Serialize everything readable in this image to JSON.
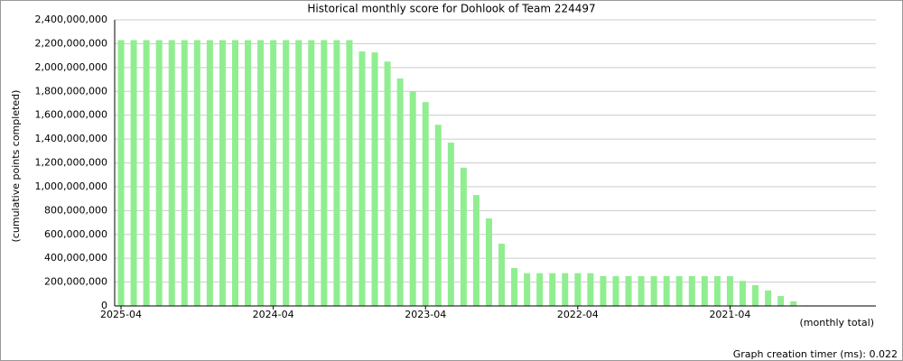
{
  "chart_data": {
    "type": "bar",
    "title": "Historical monthly score for Dohlook of Team 224497",
    "y_label": "(cumulative points completed)",
    "x_note": "(monthly total)",
    "footer": "Graph creation timer (ms): 0.022",
    "color": "#90ee90",
    "grid": true,
    "categories": [
      "2025-04",
      null,
      null,
      null,
      null,
      null,
      null,
      null,
      null,
      null,
      null,
      null,
      "2024-04",
      null,
      null,
      null,
      null,
      null,
      null,
      null,
      null,
      null,
      null,
      null,
      "2023-04",
      null,
      null,
      null,
      null,
      null,
      null,
      null,
      null,
      null,
      null,
      null,
      "2022-04",
      null,
      null,
      null,
      null,
      null,
      null,
      null,
      null,
      null,
      null,
      null,
      "2021-04",
      null,
      null,
      null,
      null,
      null,
      null,
      null,
      null,
      null,
      null,
      null
    ],
    "values": [
      2230000000,
      2230000000,
      2230000000,
      2230000000,
      2230000000,
      2230000000,
      2230000000,
      2230000000,
      2230000000,
      2230000000,
      2230000000,
      2230000000,
      2230000000,
      2230000000,
      2230000000,
      2230000000,
      2230000000,
      2230000000,
      2230000000,
      2135000000,
      2127000000,
      2050000000,
      1908000000,
      1800000000,
      1710000000,
      1520000000,
      1370000000,
      1160000000,
      930000000,
      734000000,
      522000000,
      318000000,
      275000000,
      275000000,
      275000000,
      275000000,
      275000000,
      275000000,
      250000000,
      250000000,
      250000000,
      250000000,
      250000000,
      250000000,
      250000000,
      250000000,
      250000000,
      250000000,
      250000000,
      210000000,
      174000000,
      130000000,
      83000000,
      38000000,
      5000000,
      4000000,
      4000000,
      4000000,
      4000000,
      4000000
    ],
    "ylim": [
      0,
      2400000000
    ],
    "yticks": [
      0,
      {
        "value": 200000000,
        "label": "200,000,000"
      },
      {
        "value": 400000000,
        "label": "400,000,000"
      },
      {
        "value": 600000000,
        "label": "600,000,000"
      },
      {
        "value": 800000000,
        "label": "800,000,000"
      },
      {
        "value": 1000000000,
        "label": "1,000,000,000"
      },
      {
        "value": 1200000000,
        "label": "1,200,000,000"
      },
      {
        "value": 1400000000,
        "label": "1,400,000,000"
      },
      {
        "value": 1600000000,
        "label": "1,600,000,000"
      },
      {
        "value": 1800000000,
        "label": "1,800,000,000"
      },
      {
        "value": 2000000000,
        "label": "2,000,000,000"
      },
      {
        "value": 2200000000,
        "label": "2,200,000,000"
      },
      {
        "value": 2400000000,
        "label": "2,400,000,000"
      }
    ]
  }
}
